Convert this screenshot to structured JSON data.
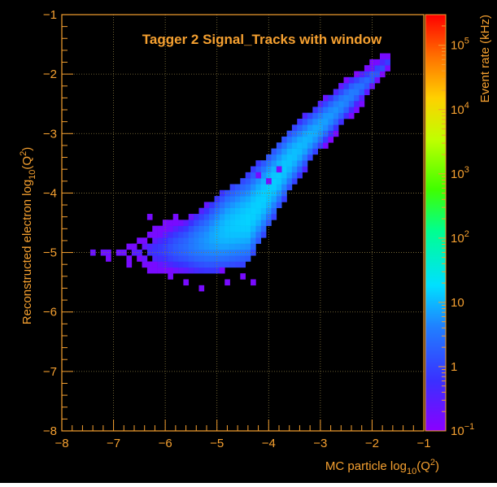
{
  "colors": {
    "frame": "#000000",
    "axis": "#f5a030",
    "grid": "#8a7a40",
    "title": "#f5a030",
    "background_outer": "#ffffff"
  },
  "chart_data": {
    "type": "heatmap",
    "title": "Tagger 2  Signal_Tracks  with window",
    "xlabel_main": "MC particle log",
    "xlabel_sub": "10",
    "xlabel_tail": "(Q",
    "xlabel_sup": "2",
    "xlabel_close": ")",
    "ylabel_main": "Reconstructed electron log",
    "ylabel_sub": "10",
    "ylabel_tail": "(Q",
    "ylabel_sup": "2",
    "ylabel_close": ")",
    "xlim": [
      -8,
      -1
    ],
    "ylim": [
      -8,
      -1
    ],
    "x_ticks": [
      "−8",
      "−7",
      "−6",
      "−5",
      "−4",
      "−3",
      "−2",
      "−1"
    ],
    "y_ticks": [
      "−8",
      "−7",
      "−6",
      "−5",
      "−4",
      "−3",
      "−2",
      "−1"
    ],
    "grid": true,
    "colorbar": {
      "label": "Event rate (kHz)",
      "scale": "log",
      "range": [
        0.1,
        300000
      ],
      "ticks": [
        {
          "value": 0.1,
          "base": "10",
          "exp": "−1"
        },
        {
          "value": 1,
          "base": "1",
          "exp": ""
        },
        {
          "value": 10,
          "base": "10",
          "exp": ""
        },
        {
          "value": 100,
          "base": "10",
          "exp": "2"
        },
        {
          "value": 1000,
          "base": "10",
          "exp": "3"
        },
        {
          "value": 10000,
          "base": "10",
          "exp": "4"
        },
        {
          "value": 100000,
          "base": "10",
          "exp": "5"
        }
      ]
    },
    "bin_width": 0.1,
    "band": [
      {
        "x": -7.4,
        "ylo": -5.0,
        "yhi": -5.0,
        "peak": 0.2
      },
      {
        "x": -6.8,
        "ylo": -5.0,
        "yhi": -5.0,
        "peak": 0.2
      },
      {
        "x": -6.4,
        "ylo": -5.2,
        "yhi": -4.8,
        "peak": 0.4
      },
      {
        "x": -6.0,
        "ylo": -5.3,
        "yhi": -4.6,
        "peak": 0.9
      },
      {
        "x": -5.6,
        "ylo": -5.3,
        "yhi": -4.5,
        "peak": 2.5
      },
      {
        "x": -5.2,
        "ylo": -5.3,
        "yhi": -4.3,
        "peak": 6
      },
      {
        "x": -4.8,
        "ylo": -5.2,
        "yhi": -4.0,
        "peak": 12
      },
      {
        "x": -4.4,
        "ylo": -5.1,
        "yhi": -3.8,
        "peak": 15
      },
      {
        "x": -4.0,
        "ylo": -4.5,
        "yhi": -3.4,
        "peak": 14
      },
      {
        "x": -3.6,
        "ylo": -3.9,
        "yhi": -3.0,
        "peak": 12
      },
      {
        "x": -3.2,
        "ylo": -3.4,
        "yhi": -2.7,
        "peak": 9
      },
      {
        "x": -2.8,
        "ylo": -3.0,
        "yhi": -2.4,
        "peak": 6
      },
      {
        "x": -2.4,
        "ylo": -2.6,
        "yhi": -2.1,
        "peak": 4
      },
      {
        "x": -2.0,
        "ylo": -2.2,
        "yhi": -1.9,
        "peak": 2
      },
      {
        "x": -1.7,
        "ylo": -1.9,
        "yhi": -1.7,
        "peak": 0.8
      }
    ],
    "outliers": [
      {
        "x": -6.3,
        "y": -4.4,
        "v": 0.15
      },
      {
        "x": -6.0,
        "y": -4.5,
        "v": 0.15
      },
      {
        "x": -5.8,
        "y": -4.4,
        "v": 0.15
      },
      {
        "x": -6.6,
        "y": -4.9,
        "v": 0.15
      },
      {
        "x": -7.1,
        "y": -5.1,
        "v": 0.15
      },
      {
        "x": -6.7,
        "y": -5.2,
        "v": 0.15
      },
      {
        "x": -5.6,
        "y": -5.5,
        "v": 0.15
      },
      {
        "x": -5.3,
        "y": -5.6,
        "v": 0.15
      },
      {
        "x": -4.8,
        "y": -5.5,
        "v": 0.15
      },
      {
        "x": -4.5,
        "y": -5.4,
        "v": 0.15
      },
      {
        "x": -4.3,
        "y": -5.5,
        "v": 0.15
      },
      {
        "x": -5.9,
        "y": -5.4,
        "v": 0.15
      },
      {
        "x": -4.9,
        "y": -5.3,
        "v": 0.15
      },
      {
        "x": -4.2,
        "y": -3.7,
        "v": 0.15
      },
      {
        "x": -3.8,
        "y": -3.6,
        "v": 0.15
      },
      {
        "x": -4.0,
        "y": -3.8,
        "v": 0.15
      }
    ]
  }
}
